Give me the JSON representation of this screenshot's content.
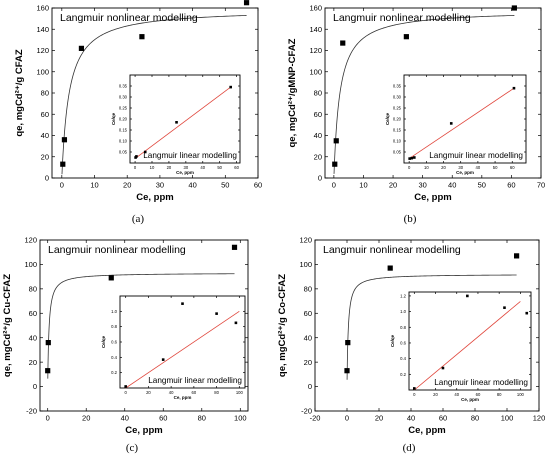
{
  "chart_data": [
    {
      "panel": "(a)",
      "type": "scatter",
      "annotation": "Langmuir nonlinear modelling",
      "xlabel": "Ce, ppm",
      "ylabel": "qe, mgCd²⁺/g CFAZ",
      "xlim": [
        -3,
        60
      ],
      "ylim": [
        0,
        160
      ],
      "xticks": [
        0,
        10,
        20,
        30,
        40,
        50,
        60
      ],
      "yticks": [
        0,
        20,
        40,
        60,
        80,
        100,
        120,
        140,
        160
      ],
      "points": [
        [
          0.3,
          13
        ],
        [
          0.8,
          36
        ],
        [
          6,
          122
        ],
        [
          24.5,
          133
        ],
        [
          56.5,
          165
        ]
      ],
      "fit_curve": {
        "qmax": 159,
        "KL": 0.45
      },
      "inset": {
        "title": "Langmuir linear modelling",
        "xlabel": "Ce, ppm",
        "ylabel": "Ce/qe",
        "xlim": [
          -3,
          62
        ],
        "ylim": [
          0,
          0.4
        ],
        "xticks": [
          0,
          10,
          20,
          30,
          40,
          50,
          60
        ],
        "yticks": [
          0.05,
          0.1,
          0.15,
          0.2,
          0.25,
          0.3,
          0.35
        ],
        "yticklabels": [
          "0.05",
          "0.10",
          "0.15",
          "0.20",
          "0.25",
          "0.30",
          "0.35"
        ],
        "points": [
          [
            0.3,
            0.025
          ],
          [
            0.8,
            0.03
          ],
          [
            6,
            0.05
          ],
          [
            24.5,
            0.185
          ],
          [
            56.5,
            0.345
          ]
        ],
        "fit_line": [
          [
            0,
            0.02
          ],
          [
            57,
            0.348
          ]
        ]
      }
    },
    {
      "panel": "(b)",
      "type": "scatter",
      "annotation": "Langmuir nonlinear modelling",
      "xlabel": "Ce, ppm",
      "ylabel": "qe, mgCd²⁺/gMNP-CFAZ",
      "xlim": [
        -3,
        70
      ],
      "ylim": [
        0,
        160
      ],
      "xticks": [
        0,
        10,
        20,
        30,
        40,
        50,
        60,
        70
      ],
      "yticks": [
        0,
        20,
        40,
        60,
        80,
        100,
        120,
        140,
        160
      ],
      "points": [
        [
          0.3,
          13
        ],
        [
          0.8,
          35
        ],
        [
          3,
          127
        ],
        [
          24.5,
          133
        ],
        [
          61,
          160
        ]
      ],
      "fit_curve": {
        "qmax": 158,
        "KL": 0.5
      },
      "inset": {
        "title": "Langmuir linear modelling",
        "xlabel": "Ce, ppm",
        "ylabel": "Ce/qe",
        "xlim": [
          -3,
          68
        ],
        "ylim": [
          0,
          0.4
        ],
        "xticks": [
          0,
          10,
          20,
          30,
          40,
          50,
          60
        ],
        "yticks": [
          0.05,
          0.1,
          0.15,
          0.2,
          0.25,
          0.3,
          0.35
        ],
        "yticklabels": [
          "0.05",
          "0.10",
          "0.15",
          "0.20",
          "0.25",
          "0.30",
          "0.35"
        ],
        "points": [
          [
            0.3,
            0.02
          ],
          [
            1.5,
            0.022
          ],
          [
            3,
            0.025
          ],
          [
            24.5,
            0.18
          ],
          [
            61,
            0.34
          ]
        ],
        "fit_line": [
          [
            0,
            0.02
          ],
          [
            61,
            0.34
          ]
        ]
      }
    },
    {
      "panel": "(c)",
      "type": "scatter",
      "annotation": "Langmuir nonlinear modelling",
      "xlabel": "Ce, ppm",
      "ylabel": "qe, mgCd²⁺/g Cu-CFAZ",
      "xlim": [
        -4,
        104
      ],
      "ylim": [
        -20,
        120
      ],
      "xticks": [
        0,
        20,
        40,
        60,
        80,
        100
      ],
      "yticks": [
        -20,
        0,
        20,
        40,
        60,
        80,
        100,
        120
      ],
      "points": [
        [
          0,
          13
        ],
        [
          0.3,
          36
        ],
        [
          33,
          89
        ],
        [
          97,
          114
        ]
      ],
      "fit_curve": {
        "qmax": 93,
        "KL": 1.5
      },
      "inset": {
        "title": "Langmuir linear modelling",
        "xlabel": "Ce, ppm",
        "ylabel": "Ce/qe",
        "xlim": [
          -5,
          105
        ],
        "ylim": [
          0,
          1.2
        ],
        "xticks": [
          0,
          20,
          40,
          60,
          80,
          100
        ],
        "yticks": [
          0.2,
          0.4,
          0.6,
          0.8,
          1.0
        ],
        "yticklabels": [
          "0.2",
          "0.4",
          "0.6",
          "0.8",
          "1.0"
        ],
        "points": [
          [
            0,
            0.02
          ],
          [
            33,
            0.37
          ],
          [
            50,
            1.1
          ],
          [
            80,
            0.97
          ],
          [
            97,
            0.85
          ]
        ],
        "fit_line": [
          [
            0,
            0.0
          ],
          [
            100,
            1.0
          ]
        ]
      }
    },
    {
      "panel": "(d)",
      "type": "scatter",
      "annotation": "Langmuir nonlinear modelling",
      "xlabel": "Ce, ppm",
      "ylabel": "qe, mgCd²⁺/g Co-CFAZ",
      "xlim": [
        -20,
        120
      ],
      "ylim": [
        -20,
        120
      ],
      "xticks": [
        -20,
        0,
        20,
        40,
        60,
        80,
        100,
        120
      ],
      "yticks": [
        -20,
        0,
        20,
        40,
        60,
        80,
        100,
        120
      ],
      "points": [
        [
          0,
          13
        ],
        [
          0.5,
          36
        ],
        [
          27,
          97
        ],
        [
          106,
          107
        ]
      ],
      "fit_curve": {
        "qmax": 92,
        "KL": 1.3
      },
      "inset": {
        "title": "Langmuir linear modelling",
        "xlabel": "Ce, ppm",
        "ylabel": "Ce/qe",
        "xlim": [
          -5,
          110
        ],
        "ylim": [
          0,
          1.25
        ],
        "xticks": [
          0,
          20,
          40,
          60,
          80,
          100
        ],
        "yticks": [
          0.2,
          0.4,
          0.6,
          0.8,
          1.0,
          1.2
        ],
        "yticklabels": [
          "0.2",
          "0.4",
          "0.6",
          "0.8",
          "1.0",
          "1.2"
        ],
        "points": [
          [
            0,
            0.02
          ],
          [
            27,
            0.28
          ],
          [
            50,
            1.2
          ],
          [
            85,
            1.05
          ],
          [
            106,
            0.98
          ]
        ],
        "fit_line": [
          [
            0,
            0.0
          ],
          [
            100,
            1.13
          ]
        ]
      }
    }
  ],
  "captions": [
    "(a)",
    "(b)",
    "(c)",
    "(d)"
  ]
}
